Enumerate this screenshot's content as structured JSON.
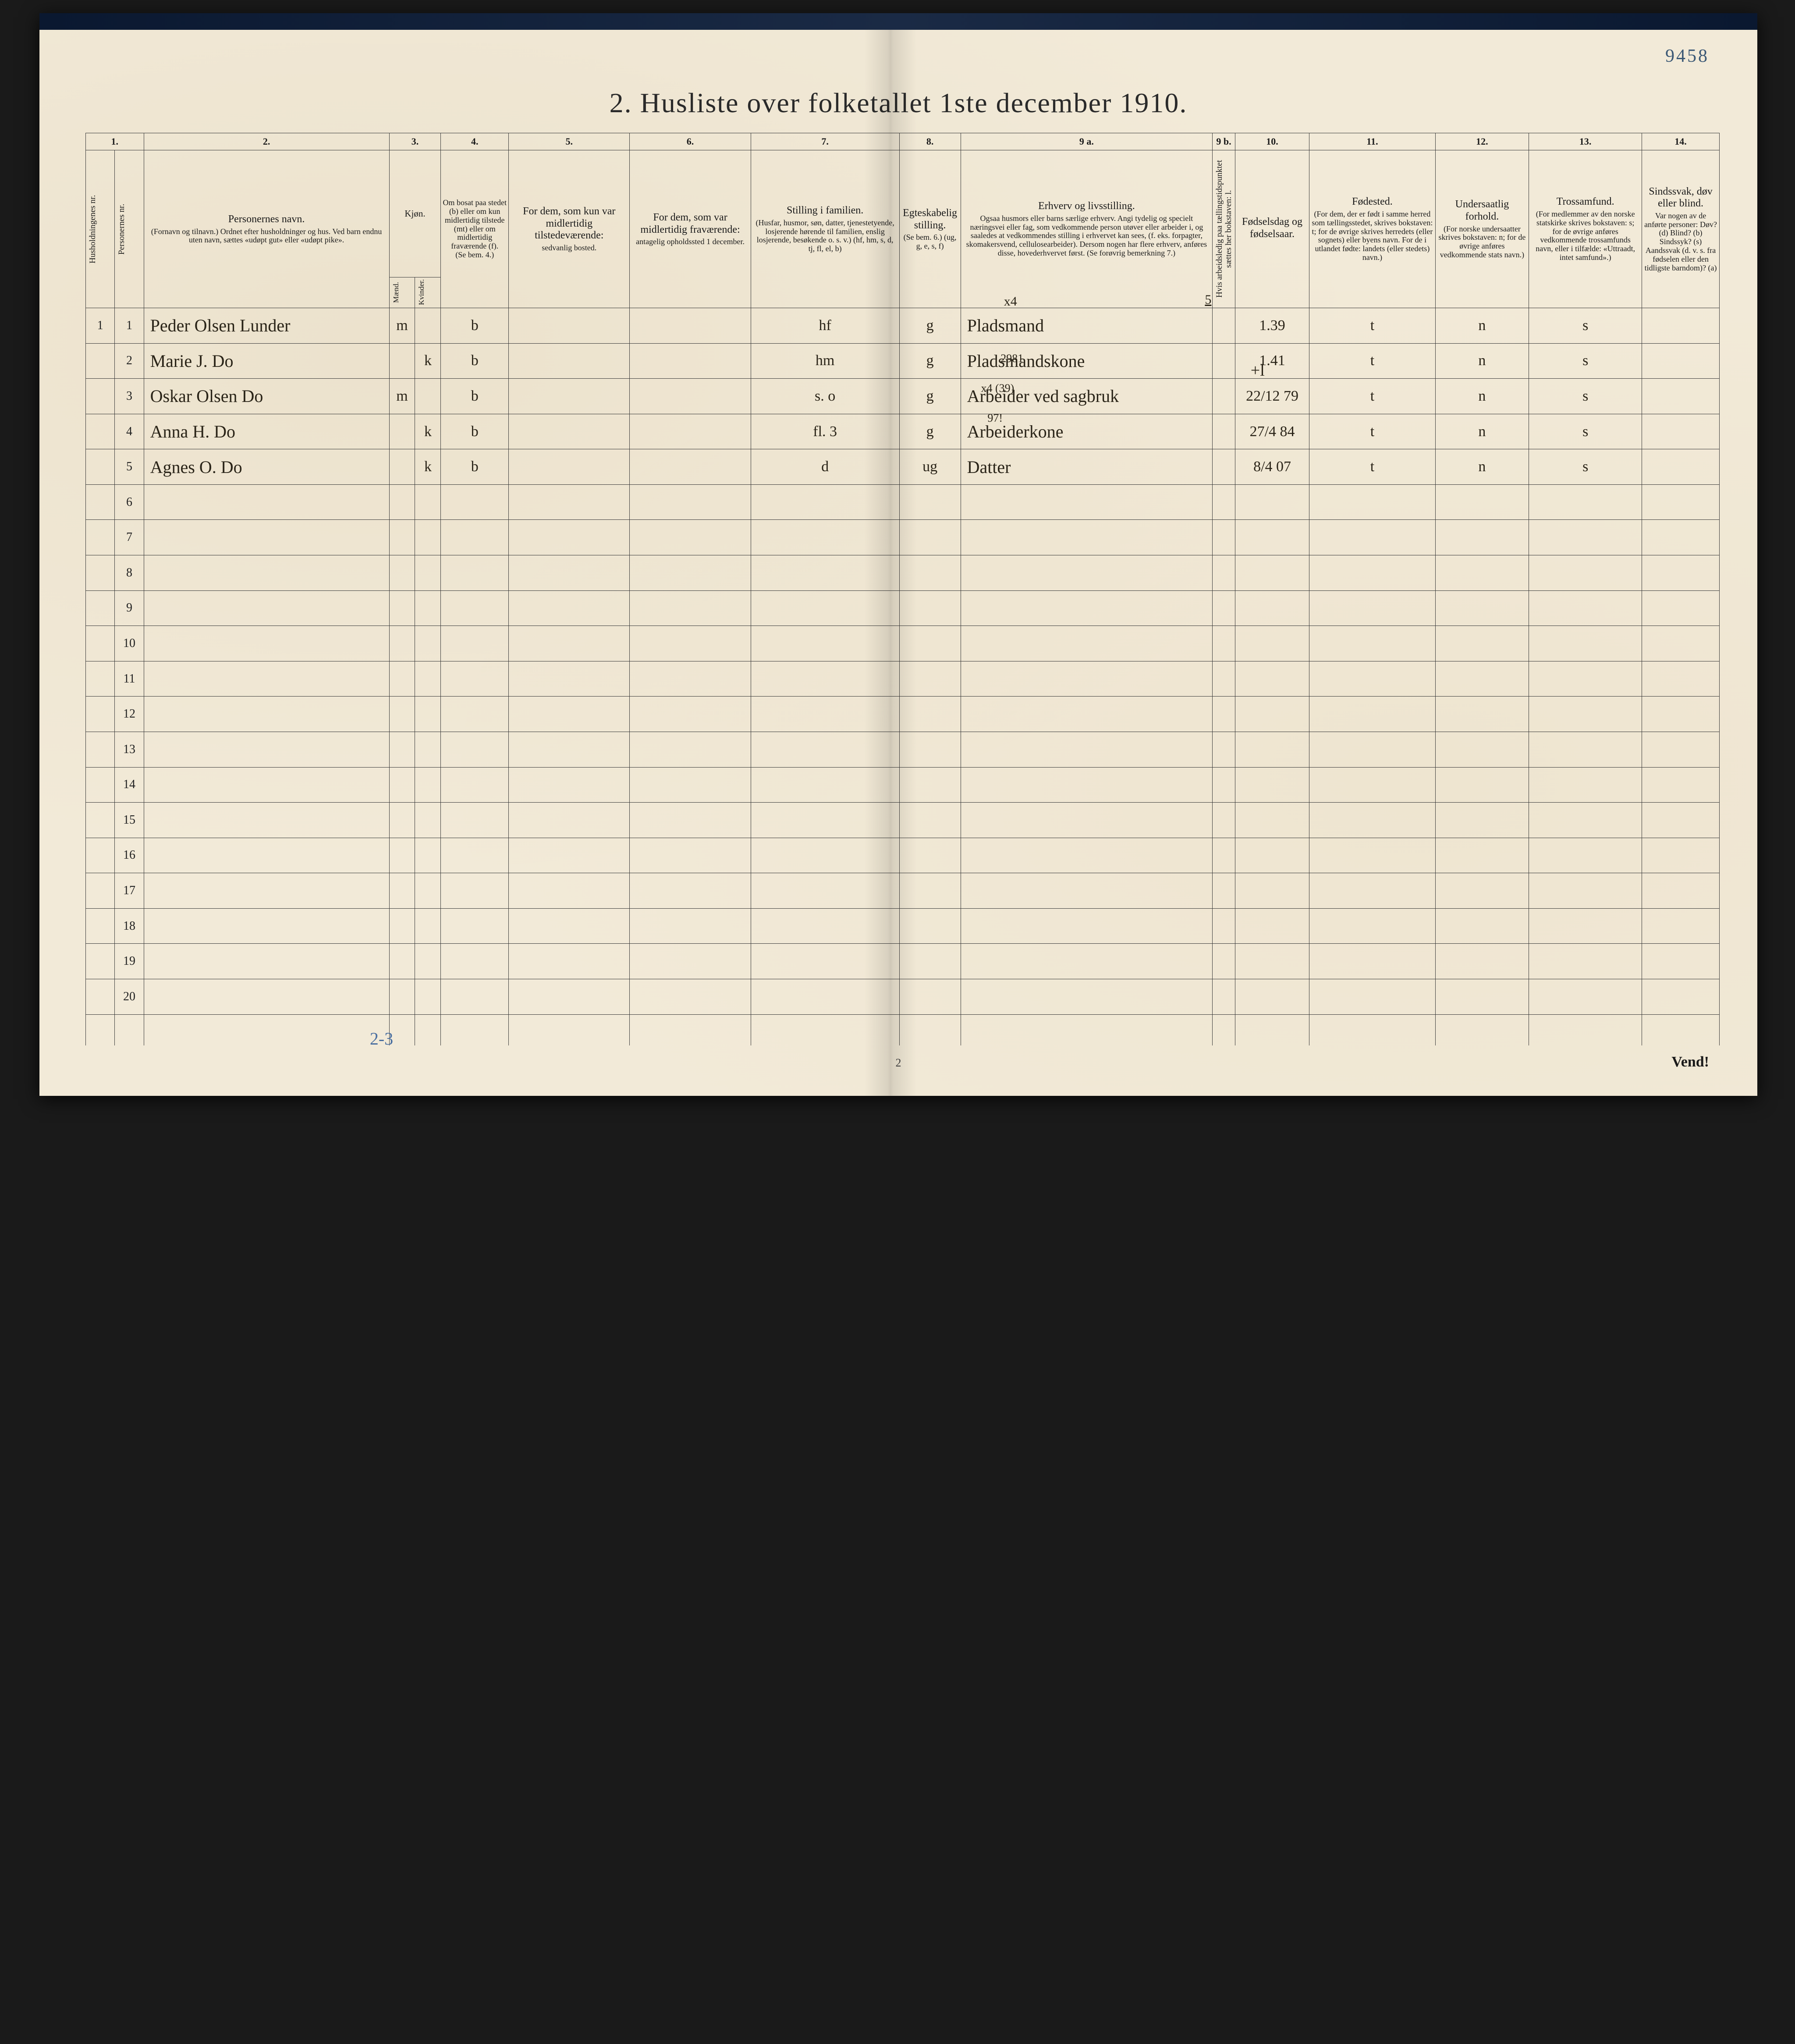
{
  "page_number_handwritten": "9458",
  "title": "2.  Husliste over folketallet 1ste december 1910.",
  "footer_page": "2",
  "footer_vend": "Vend!",
  "under_count": "2-3",
  "colors": {
    "page_bg": "#f2ead8",
    "ink": "#2a2418",
    "print": "#1a1a1a",
    "rule": "#3a3a3a",
    "blue_pencil": "#3464a8",
    "frame": "#000000"
  },
  "col_widths_pct": [
    1.8,
    1.8,
    15.2,
    1.6,
    1.6,
    4.2,
    7.5,
    7.5,
    9.2,
    3.8,
    15.6,
    1.4,
    4.6,
    7.8,
    5.8,
    7.0,
    4.8
  ],
  "col_numbers": [
    "1.",
    "2.",
    "3.",
    "4.",
    "5.",
    "6.",
    "7.",
    "8.",
    "9 a.",
    "9 b.",
    "10.",
    "11.",
    "12.",
    "13.",
    "14."
  ],
  "headers": {
    "c1": "Husholdningenes nr.",
    "c1b": "Personernes nr.",
    "c2_main": "Personernes navn.",
    "c2_sub": "(Fornavn og tilnavn.)\nOrdnet efter husholdninger og hus.\nVed barn endnu uten navn, sættes «udøpt gut» eller «udøpt pike».",
    "c3": "Kjøn.",
    "c3_m": "Mænd.",
    "c3_k": "Kvinder.",
    "c4_main": "Om bosat paa stedet (b) eller om kun midlertidig tilstede (mt) eller om midlertidig fraværende (f).",
    "c4_sub": "(Se bem. 4.)",
    "c5_main": "For dem, som kun var midlertidig tilstedeværende:",
    "c5_sub": "sedvanlig bosted.",
    "c6_main": "For dem, som var midlertidig fraværende:",
    "c6_sub": "antagelig opholdssted 1 december.",
    "c7_main": "Stilling i familien.",
    "c7_sub": "(Husfar, husmor, søn, datter, tjenestetyende, losjerende hørende til familien, enslig losjerende, besøkende o. s. v.)\n(hf, hm, s, d, tj, fl, el, b)",
    "c8_main": "Egteskabelig stilling.",
    "c8_sub": "(Se bem. 6.)\n(ug, g, e, s, f)",
    "c9a_main": "Erhverv og livsstilling.",
    "c9a_sub": "Ogsaa husmors eller barns særlige erhverv. Angi tydelig og specielt næringsvei eller fag, som vedkommende person utøver eller arbeider i, og saaledes at vedkommendes stilling i erhvervet kan sees, (f. eks. forpagter, skomakersvend, cellulosearbeider). Dersom nogen har flere erhverv, anføres disse, hovederhvervet først.\n(Se forøvrig bemerkning 7.)",
    "c9b": "Hvis arbeidsledig paa tællingstidspunktet sættes her bokstaven: l.",
    "c10_main": "Fødselsdag og fødselsaar.",
    "c11_main": "Fødested.",
    "c11_sub": "(For dem, der er født i samme herred som tællingsstedet, skrives bokstaven: t; for de øvrige skrives herredets (eller sognets) eller byens navn. For de i utlandet fødte: landets (eller stedets) navn.)",
    "c12_main": "Undersaatlig forhold.",
    "c12_sub": "(For norske undersaatter skrives bokstaven: n; for de øvrige anføres vedkommende stats navn.)",
    "c13_main": "Trossamfund.",
    "c13_sub": "(For medlemmer av den norske statskirke skrives bokstaven: s; for de øvrige anføres vedkommende trossamfunds navn, eller i tilfælde: «Uttraadt, intet samfund».)",
    "c14_main": "Sindssvak, døv eller blind.",
    "c14_sub": "Var nogen av de anførte personer:\nDøv? (d)\nBlind? (b)\nSindssyk? (s)\nAandssvak (d. v. s. fra fødselen eller den tidligste barndom)? (a)"
  },
  "annotations": {
    "above_row1_9a": "x4",
    "above_row1_10": "5",
    "row3_9a_over": "2981",
    "row4_9a_over": "x4   (39)",
    "row5_9a_over": "97!",
    "row3_11_mark": "+l"
  },
  "rows": [
    {
      "h": "1",
      "p": "1",
      "name": "Peder Olsen Lunder",
      "m": "m",
      "k": "",
      "bf": "b",
      "c5": "",
      "c6": "",
      "fam": "hf",
      "eg": "g",
      "erv": "Pladsmand",
      "l": "",
      "dob": "1.39",
      "fst": "t",
      "nat": "n",
      "tro": "s",
      "c14": ""
    },
    {
      "h": "",
      "p": "2",
      "name": "Marie J.        Do",
      "m": "",
      "k": "k",
      "bf": "b",
      "c5": "",
      "c6": "",
      "fam": "hm",
      "eg": "g",
      "erv": "Pladsmandskone",
      "l": "",
      "dob": "1.41",
      "fst": "t",
      "nat": "n",
      "tro": "s",
      "c14": ""
    },
    {
      "h": "",
      "p": "3",
      "name": "Oskar Olsen     Do",
      "m": "m",
      "k": "",
      "bf": "b",
      "c5": "",
      "c6": "",
      "fam": "s.    o",
      "eg": "g",
      "erv": "Arbeider ved sagbruk",
      "l": "",
      "dob": "22/12 79",
      "fst": "t",
      "nat": "n",
      "tro": "s",
      "c14": ""
    },
    {
      "h": "",
      "p": "4",
      "name": "Anna H.         Do",
      "m": "",
      "k": "k",
      "bf": "b",
      "c5": "",
      "c6": "",
      "fam": "fl.   3",
      "eg": "g",
      "erv": "Arbeiderkone",
      "l": "",
      "dob": "27/4 84",
      "fst": "t",
      "nat": "n",
      "tro": "s",
      "c14": ""
    },
    {
      "h": "",
      "p": "5",
      "name": "Agnes O.        Do",
      "m": "",
      "k": "k",
      "bf": "b",
      "c5": "",
      "c6": "",
      "fam": "d",
      "eg": "ug",
      "erv": "Datter",
      "l": "",
      "dob": "8/4 07",
      "fst": "t",
      "nat": "n",
      "tro": "s",
      "c14": ""
    }
  ],
  "empty_rows": [
    6,
    7,
    8,
    9,
    10,
    11,
    12,
    13,
    14,
    15,
    16,
    17,
    18,
    19,
    20
  ]
}
